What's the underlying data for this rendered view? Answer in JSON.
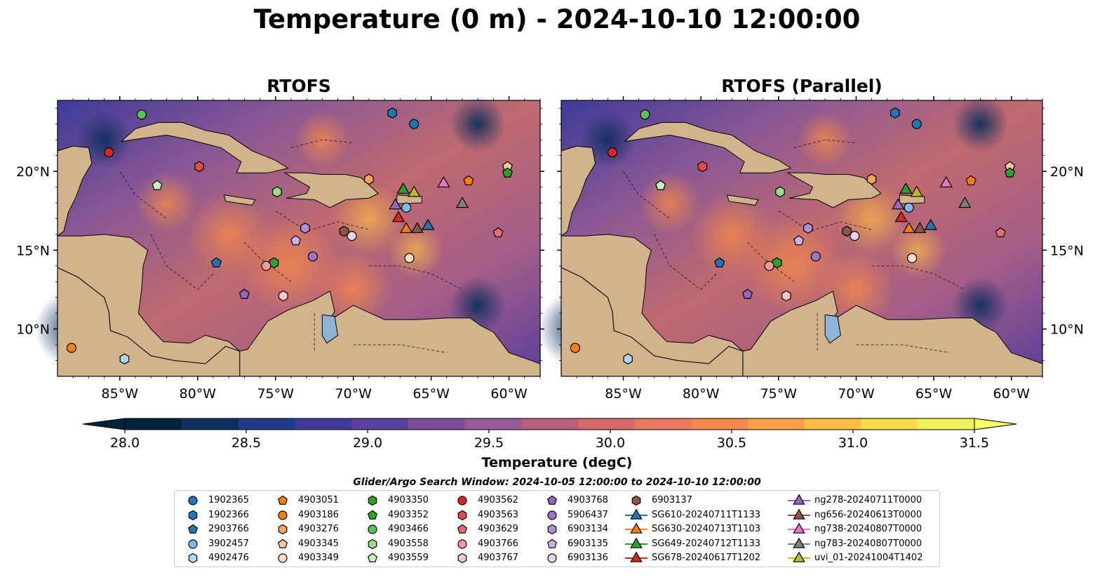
{
  "title": "Temperature (0 m) - 2024-10-10 12:00:00",
  "panels": [
    {
      "title": "RTOFS"
    },
    {
      "title": "RTOFS (Parallel)"
    }
  ],
  "map": {
    "lon_range": [
      -89,
      -58
    ],
    "lat_range": [
      7,
      24.5
    ],
    "lon_ticks": [
      "85°W",
      "80°W",
      "75°W",
      "70°W",
      "65°W",
      "60°W"
    ],
    "lat_ticks": [
      "20°N",
      "15°N",
      "10°N"
    ],
    "land_color": "#d2b48c",
    "lake_color": "#8fb3d9",
    "border_style": "dashed"
  },
  "colorbar": {
    "label": "Temperature (degC)",
    "min": 28.0,
    "max": 31.5,
    "ticks": [
      "28.0",
      "28.5",
      "29.0",
      "29.5",
      "30.0",
      "30.5",
      "31.0",
      "31.5"
    ],
    "colors": [
      "#06213a",
      "#0f2f5e",
      "#1e3a8a",
      "#3d3a9a",
      "#5b3f9c",
      "#7a4c9a",
      "#995896",
      "#b8617f",
      "#d26a6d",
      "#e8785e",
      "#f5894b",
      "#fca046",
      "#fdbd43",
      "#f9dc4a",
      "#f3f05e"
    ],
    "extend": "both"
  },
  "search_window": "Glider/Argo Search Window: 2024-10-05 12:00:00 to 2024-10-10 12:00:00",
  "observations": [
    {
      "label": "1902365",
      "marker": "circle",
      "color": "#1f77b4",
      "lon": -66.1,
      "lat": 23.0
    },
    {
      "label": "1902366",
      "marker": "hexagon",
      "color": "#1f77b4",
      "lon": -67.5,
      "lat": 23.7
    },
    {
      "label": "2903766",
      "marker": "pentagon",
      "color": "#1f77b4",
      "lon": -78.8,
      "lat": 14.2
    },
    {
      "label": "3902457",
      "marker": "circle",
      "color": "#7fb8e6",
      "lon": -66.6,
      "lat": 17.7
    },
    {
      "label": "4902476",
      "marker": "hexagon",
      "color": "#aed6f1",
      "lon": -84.7,
      "lat": 8.1
    },
    {
      "label": "4903051",
      "marker": "pentagon",
      "color": "#ff7f0e",
      "lon": -62.6,
      "lat": 19.4
    },
    {
      "label": "4903186",
      "marker": "circle",
      "color": "#ff7f0e",
      "lon": -88.1,
      "lat": 8.8
    },
    {
      "label": "4903276",
      "marker": "hexagon",
      "color": "#f5a55a",
      "lon": -69.0,
      "lat": 19.5
    },
    {
      "label": "4903345",
      "marker": "pentagon",
      "color": "#f9c9a0",
      "lon": -60.1,
      "lat": 20.3
    },
    {
      "label": "4903349",
      "marker": "circle",
      "color": "#fde0c5",
      "lon": -66.4,
      "lat": 14.5
    },
    {
      "label": "4903350",
      "marker": "hexagon",
      "color": "#2ca02c",
      "lon": -75.1,
      "lat": 14.2
    },
    {
      "label": "4903352",
      "marker": "pentagon",
      "color": "#2ca02c",
      "lon": -60.1,
      "lat": 19.9
    },
    {
      "label": "4903466",
      "marker": "circle",
      "color": "#5cc15c",
      "lon": -83.6,
      "lat": 23.6
    },
    {
      "label": "4903558",
      "marker": "hexagon",
      "color": "#98df8a",
      "lon": -74.9,
      "lat": 18.7
    },
    {
      "label": "4903559",
      "marker": "pentagon",
      "color": "#c8f0c0",
      "lon": -82.6,
      "lat": 19.1
    },
    {
      "label": "4903562",
      "marker": "circle",
      "color": "#d62728",
      "lon": -85.7,
      "lat": 21.2
    },
    {
      "label": "4903563",
      "marker": "hexagon",
      "color": "#e34a4a",
      "lon": -79.9,
      "lat": 20.3
    },
    {
      "label": "4903629",
      "marker": "pentagon",
      "color": "#e86a6a",
      "lon": -60.7,
      "lat": 16.1
    },
    {
      "label": "4903766",
      "marker": "circle",
      "color": "#f29a9a",
      "lon": -75.6,
      "lat": 14.0
    },
    {
      "label": "4903767",
      "marker": "hexagon",
      "color": "#f8c6c6",
      "lon": -74.5,
      "lat": 12.1
    },
    {
      "label": "4903768",
      "marker": "pentagon",
      "color": "#9467bd",
      "lon": -77.0,
      "lat": 12.2
    },
    {
      "label": "5906437",
      "marker": "circle",
      "color": "#9d74c6",
      "lon": -72.6,
      "lat": 14.6
    },
    {
      "label": "6903134",
      "marker": "hexagon",
      "color": "#b190d6",
      "lon": -73.1,
      "lat": 16.4
    },
    {
      "label": "6903135",
      "marker": "pentagon",
      "color": "#cbb3e6",
      "lon": -73.7,
      "lat": 15.6
    },
    {
      "label": "6903136",
      "marker": "circle",
      "color": "#e2d3f2",
      "lon": -70.1,
      "lat": 15.9
    },
    {
      "label": "6903137",
      "marker": "hexagon",
      "color": "#8c564b",
      "lon": -70.6,
      "lat": 16.2
    },
    {
      "label": "SG610-20240711T1133",
      "marker": "triangle",
      "color": "#1f77b4",
      "lon": -65.2,
      "lat": 16.6
    },
    {
      "label": "SG630-20240713T1103",
      "marker": "triangle",
      "color": "#ff7f0e",
      "lon": -66.6,
      "lat": 16.4
    },
    {
      "label": "SG649-20240712T1133",
      "marker": "triangle",
      "color": "#2ca02c",
      "lon": -66.8,
      "lat": 18.9
    },
    {
      "label": "SG678-20240617T1202",
      "marker": "triangle",
      "color": "#d62728",
      "lon": -67.1,
      "lat": 17.1
    },
    {
      "label": "ng278-20240711T0000",
      "marker": "triangle",
      "color": "#9467bd",
      "lon": -67.3,
      "lat": 17.9
    },
    {
      "label": "ng656-20240613T0000",
      "marker": "triangle",
      "color": "#8c564b",
      "lon": -65.9,
      "lat": 16.4
    },
    {
      "label": "ng738-20240807T0000",
      "marker": "triangle",
      "color": "#e377c2",
      "lon": -64.2,
      "lat": 19.3
    },
    {
      "label": "ng783-20240807T0000",
      "marker": "triangle",
      "color": "#7f7f7f",
      "lon": -63.0,
      "lat": 18.0
    },
    {
      "label": "uvi_01-20241004T1402",
      "marker": "triangle",
      "color": "#bcbd22",
      "lon": -66.1,
      "lat": 18.7
    }
  ]
}
